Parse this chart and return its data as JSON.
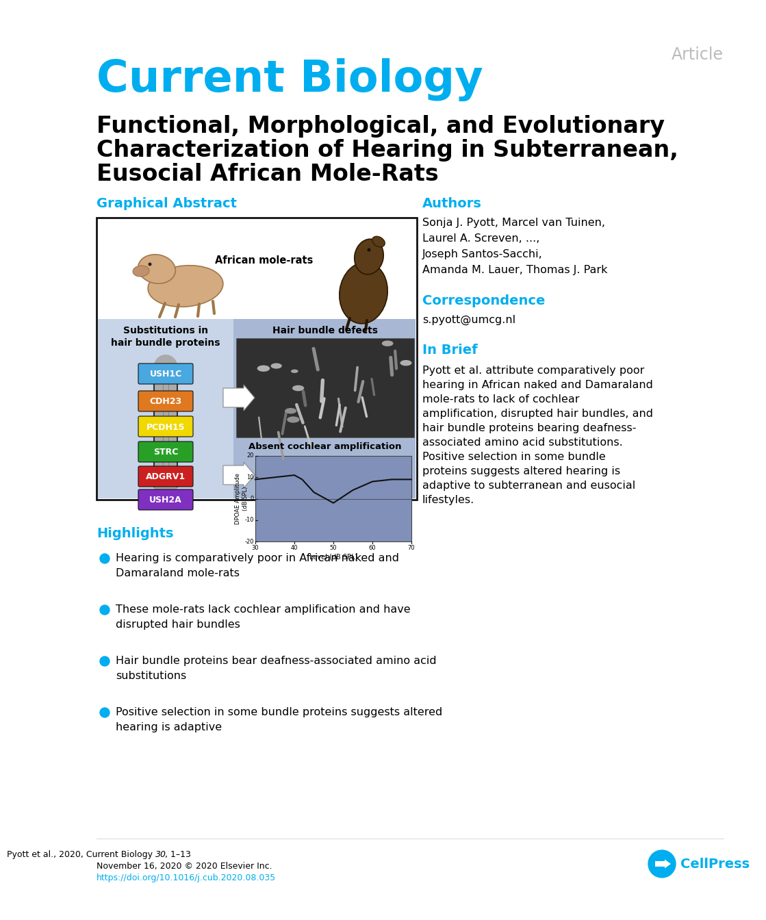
{
  "article_label": "Article",
  "journal_name": "Current Biology",
  "title_line1": "Functional, Morphological, and Evolutionary",
  "title_line2": "Characterization of Hearing in Subterranean,",
  "title_line3": "Eusocial African Mole-Rats",
  "section_graphical_abstract": "Graphical Abstract",
  "section_authors": "Authors",
  "authors_lines": [
    "Sonja J. Pyott, Marcel van Tuinen,",
    "Laurel A. Screven, ...,",
    "Joseph Santos-Sacchi,",
    "Amanda M. Lauer, Thomas J. Park"
  ],
  "section_correspondence": "Correspondence",
  "correspondence_text": "s.pyott@umcg.nl",
  "section_in_brief": "In Brief",
  "in_brief_lines": [
    "Pyott et al. attribute comparatively poor",
    "hearing in African naked and Damaraland",
    "mole-rats to lack of cochlear",
    "amplification, disrupted hair bundles, and",
    "hair bundle proteins bearing deafness-",
    "associated amino acid substitutions.",
    "Positive selection in some bundle",
    "proteins suggests altered hearing is",
    "adaptive to subterranean and eusocial",
    "lifestyles."
  ],
  "section_highlights": "Highlights",
  "highlights": [
    [
      "Hearing is comparatively poor in African naked and",
      "Damaraland mole-rats"
    ],
    [
      "These mole-rats lack cochlear amplification and have",
      "disrupted hair bundles"
    ],
    [
      "Hair bundle proteins bear deafness-associated amino acid",
      "substitutions"
    ],
    [
      "Positive selection in some bundle proteins suggests altered",
      "hearing is adaptive"
    ]
  ],
  "footer_citation": "Pyott et al., 2020, Current Biology ",
  "footer_citation_italic": "30",
  "footer_citation_end": ", 1–13",
  "footer_date": "November 16, 2020 © 2020 Elsevier Inc.",
  "footer_doi": "https://doi.org/10.1016/j.cub.2020.08.035",
  "cyan_color": "#00AEEF",
  "black_color": "#000000",
  "hair_bundle_labels": [
    "USH1C",
    "CDH23",
    "PCDH15",
    "STRC",
    "ADGRV1",
    "USH2A"
  ],
  "hair_bundle_colors": [
    "#4AA8E0",
    "#E07820",
    "#F0D800",
    "#28A028",
    "#CC2020",
    "#8030C0"
  ],
  "mole_rats_label": "African mole-rats",
  "substitution_title": "Substitutions in\nhair bundle proteins",
  "hair_bundle_defects_title": "Hair bundle defects",
  "absent_cochlear_title": "Absent cochlear amplification",
  "chart_x_label": "Level (dB SPL)",
  "chart_y_label": "DPOAE Amplitude\n(dB SPL)",
  "chart_x_ticks": [
    30,
    40,
    50,
    60,
    70
  ],
  "chart_y_ticks": [
    -20,
    -10,
    0,
    10,
    20
  ],
  "chart_x_values": [
    30,
    35,
    40,
    42,
    45,
    50,
    55,
    60,
    65,
    70
  ],
  "chart_y_values": [
    9,
    10,
    11,
    9,
    3,
    -2,
    4,
    8,
    9,
    9
  ],
  "left_panel_bg": "#C8D5E8",
  "right_panel_bg": "#A8B8D4",
  "chart_bg": "#8090B8",
  "celpress_text": "CellPress"
}
